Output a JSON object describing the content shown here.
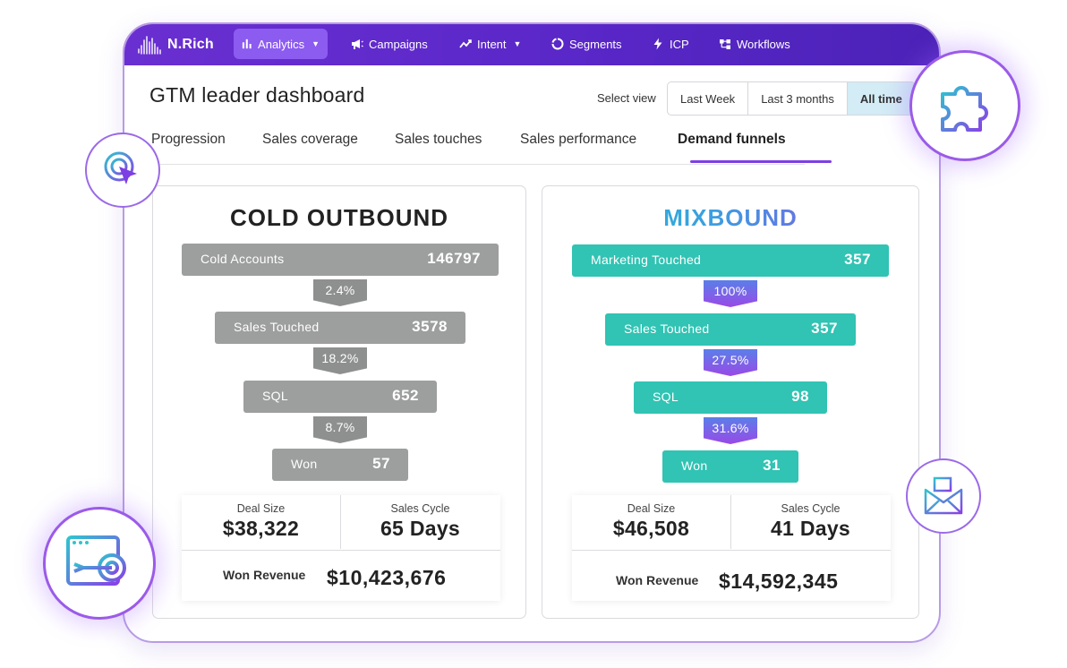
{
  "brand": {
    "name": "N.Rich"
  },
  "nav": [
    {
      "label": "Analytics",
      "icon": "bar-chart-icon",
      "dropdown": true,
      "active": true
    },
    {
      "label": "Campaigns",
      "icon": "megaphone-icon",
      "dropdown": false
    },
    {
      "label": "Intent",
      "icon": "trend-icon",
      "dropdown": true
    },
    {
      "label": "Segments",
      "icon": "circle-segment-icon",
      "dropdown": false
    },
    {
      "label": "ICP",
      "icon": "lightning-icon",
      "dropdown": false
    },
    {
      "label": "Workflows",
      "icon": "workflow-icon",
      "dropdown": false
    }
  ],
  "page": {
    "title": "GTM leader dashboard"
  },
  "view": {
    "label": "Select view",
    "options": [
      "Last Week",
      "Last 3 months",
      "All time"
    ],
    "selected": "All time"
  },
  "tabs": [
    "Progression",
    "Sales coverage",
    "Sales touches",
    "Sales performance",
    "Demand funnels"
  ],
  "active_tab": "Demand funnels",
  "funnels": [
    {
      "title": "COLD OUTBOUND",
      "stages": [
        {
          "label": "Cold Accounts",
          "value": "146797"
        },
        {
          "label": "Sales Touched",
          "value": "3578"
        },
        {
          "label": "SQL",
          "value": "652"
        },
        {
          "label": "Won",
          "value": "57"
        }
      ],
      "conversions": [
        "2.4%",
        "18.2%",
        "8.7%"
      ],
      "deal_size_label": "Deal Size",
      "deal_size": "$38,322",
      "sales_cycle_label": "Sales Cycle",
      "sales_cycle": "65 Days",
      "won_revenue_label": "Won Revenue",
      "won_revenue": "$10,423,676"
    },
    {
      "title": "MIXBOUND",
      "stages": [
        {
          "label": "Marketing Touched",
          "value": "357"
        },
        {
          "label": "Sales Touched",
          "value": "357"
        },
        {
          "label": "SQL",
          "value": "98"
        },
        {
          "label": "Won",
          "value": "31"
        }
      ],
      "conversions": [
        "100%",
        "27.5%",
        "31.6%"
      ],
      "deal_size_label": "Deal Size",
      "deal_size": "$46,508",
      "sales_cycle_label": "Sales Cycle",
      "sales_cycle": "41 Days",
      "won_revenue_label": "Won Revenue",
      "won_revenue": "$14,592,345"
    }
  ],
  "colors": {
    "nav_bg": "#5a27c8",
    "nav_active": "#8c5bf0",
    "accent_purple": "#7d3fe3",
    "funnel_grey": "#9d9e9e",
    "funnel_teal": "#31c3b3",
    "selected_view_bg": "#d3ecf5"
  }
}
